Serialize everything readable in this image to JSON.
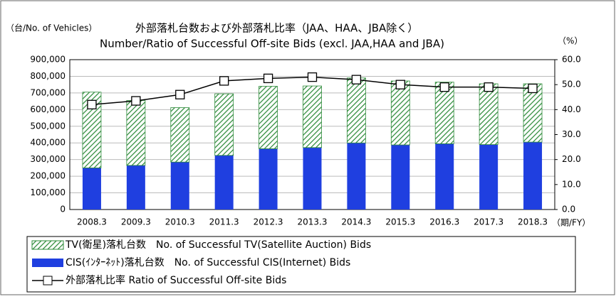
{
  "chart_data": {
    "type": "bar",
    "title": "外部落札台数および外部落札比率（JAA、HAA、JBA除く）",
    "subtitle": "Number/Ratio  of  Successful Off-site Bids (excl. JAA,HAA and JBA)",
    "y_label": "（台/No. of Vehicles）",
    "y2_label": "（%）",
    "x_label": "（期/FY）",
    "categories": [
      "2008.3",
      "2009.3",
      "2010.3",
      "2011.3",
      "2012.3",
      "2013.3",
      "2014.3",
      "2015.3",
      "2016.3",
      "2017.3",
      "2018.3"
    ],
    "series": [
      {
        "name": "TV(衛星)落札台数　No. of Successful TV(Satellite Auction) Bids",
        "type": "bar",
        "color": "#2e8b3a",
        "values": [
          455000,
          390000,
          327000,
          370000,
          375000,
          370000,
          390000,
          384000,
          370000,
          365000,
          350000
        ]
      },
      {
        "name": "CIS(ｲﾝﾀｰﾈｯﾄ)落札台数　No. of Successful CIS(Internet) Bids",
        "type": "bar",
        "color": "#1f3fe0",
        "values": [
          250000,
          265000,
          285000,
          325000,
          365000,
          372000,
          400000,
          388000,
          395000,
          390000,
          405000
        ]
      },
      {
        "name": "外部落札比率  Ratio of Successful Off-site Bids",
        "type": "line",
        "axis": "y2",
        "color": "#000000",
        "values": [
          42.0,
          43.5,
          46.0,
          51.5,
          52.5,
          53.0,
          52.0,
          50.0,
          49.0,
          49.0,
          48.5
        ]
      }
    ],
    "ylim": [
      0,
      900000
    ],
    "yticks": [
      0,
      {
        "value": 100000,
        "label": "100,000"
      },
      {
        "value": 200000,
        "label": "200,000"
      },
      {
        "value": 300000,
        "label": "300,000"
      },
      {
        "value": 400000,
        "label": "400,000"
      },
      {
        "value": 500000,
        "label": "500,000"
      },
      {
        "value": 600000,
        "label": "600,000"
      },
      {
        "value": 700000,
        "label": "700,000"
      },
      {
        "value": 800000,
        "label": "800,000"
      },
      {
        "value": 900000,
        "label": "900,000"
      }
    ],
    "y2lim": [
      0,
      60
    ],
    "y2ticks": [
      {
        "value": 0,
        "label": "0.0"
      },
      {
        "value": 10,
        "label": "10.0"
      },
      {
        "value": 20,
        "label": "20.0"
      },
      {
        "value": 30,
        "label": "30.0"
      },
      {
        "value": 40,
        "label": "40.0"
      },
      {
        "value": 50,
        "label": "50.0"
      },
      {
        "value": 60,
        "label": "60.0"
      }
    ],
    "grid": true
  }
}
